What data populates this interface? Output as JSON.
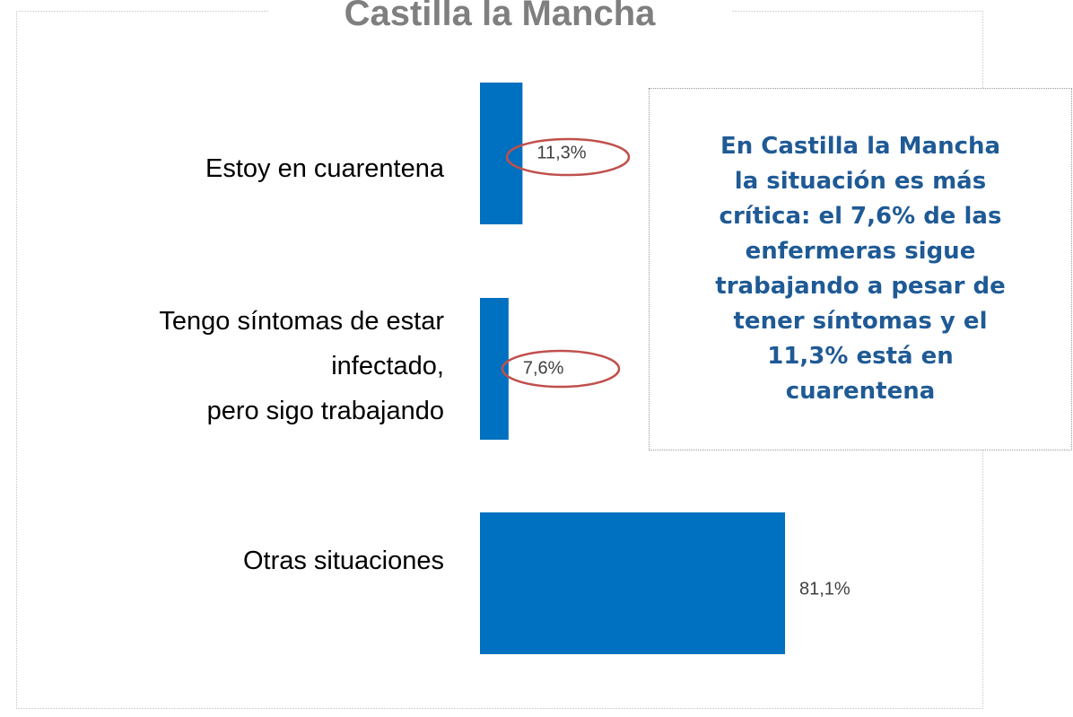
{
  "chart_data": {
    "type": "bar",
    "orientation": "horizontal",
    "title": "Castilla la Mancha",
    "categories": [
      "Estoy en cuarentena",
      "Tengo síntomas de estar\ninfectado,\npero sigo trabajando",
      "Otras situaciones"
    ],
    "values": [
      11.3,
      7.6,
      81.1
    ],
    "value_labels": [
      "11,3%",
      "7,6%",
      "81,1%"
    ],
    "color": "#0070c0",
    "annotation": "En Castilla la Mancha\nla situación es más\ncrítica: el 7,6% de las\nenfermeras sigue\ntrabajando a pesar de\ntener síntomas y el\n11,3% está en\ncuarentena"
  }
}
